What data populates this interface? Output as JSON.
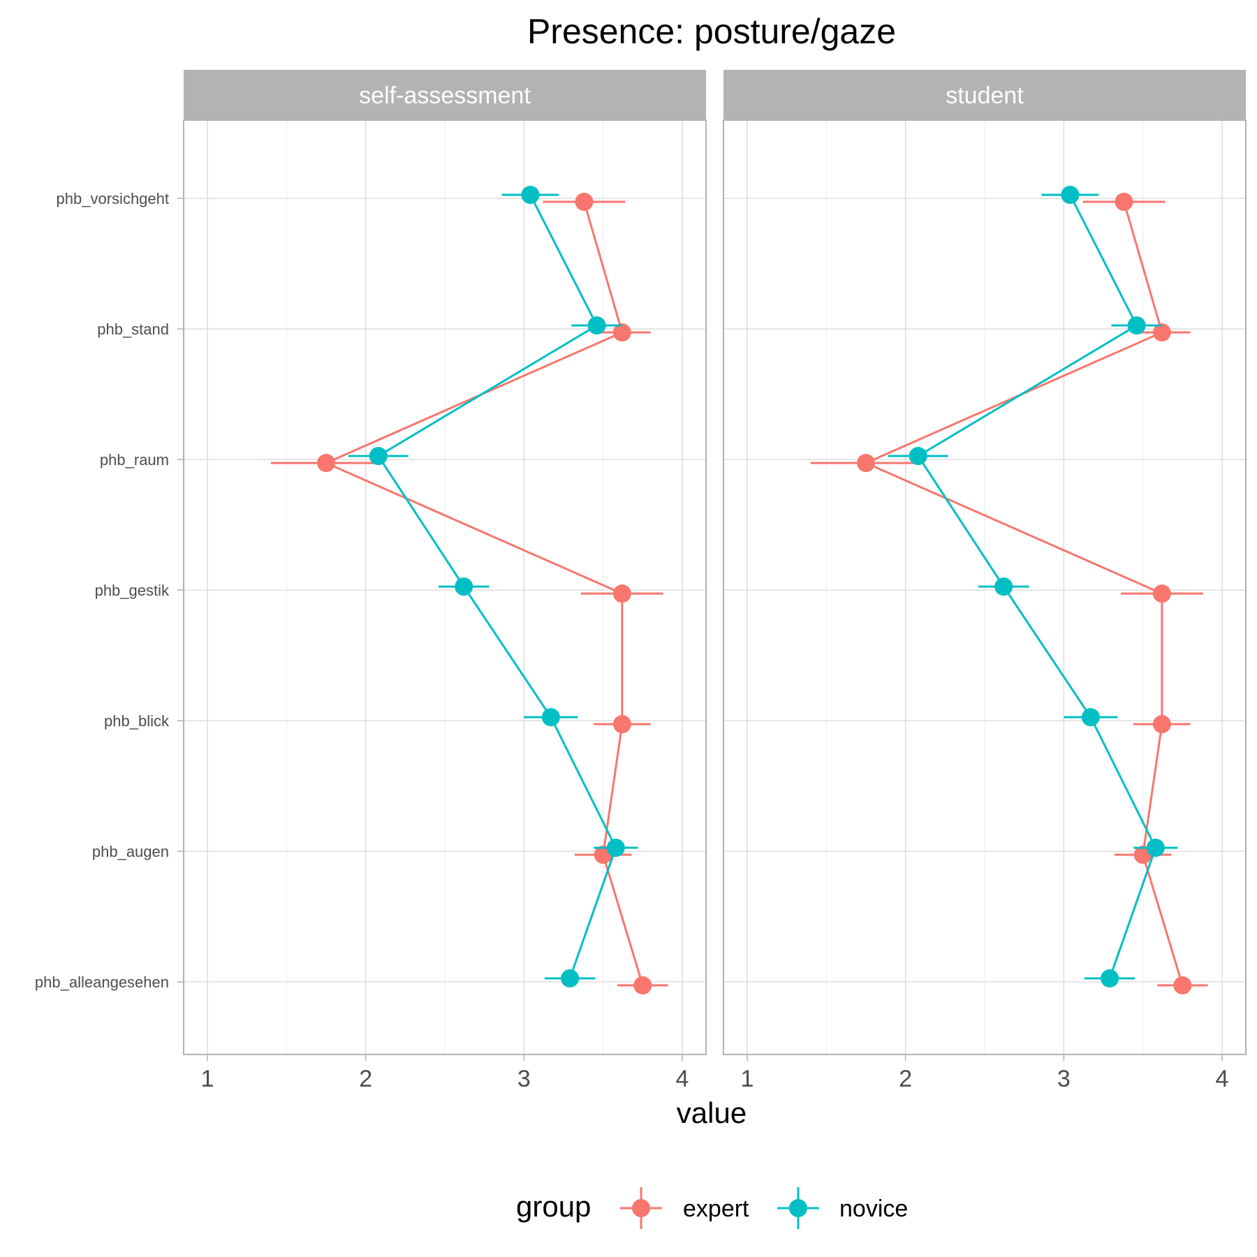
{
  "chart_data": {
    "type": "line",
    "title": "Presence: posture/gaze",
    "xlabel": "value",
    "xlim": [
      0.85,
      4.15
    ],
    "xticks": [
      1,
      2,
      3,
      4
    ],
    "categories": [
      "phb_vorsichgeht",
      "phb_stand",
      "phb_raum",
      "phb_gestik",
      "phb_blick",
      "phb_augen",
      "phb_alleangesehen"
    ],
    "facets": [
      {
        "label": "self-assessment",
        "series": [
          {
            "name": "expert",
            "color": "#F8766D",
            "values": [
              3.38,
              3.62,
              1.75,
              3.62,
              3.62,
              3.5,
              3.75
            ],
            "errors": [
              0.26,
              0.18,
              0.35,
              0.26,
              0.18,
              0.18,
              0.16
            ]
          },
          {
            "name": "novice",
            "color": "#00BFC4",
            "values": [
              3.04,
              3.46,
              2.08,
              2.62,
              3.17,
              3.58,
              3.29
            ],
            "errors": [
              0.18,
              0.16,
              0.19,
              0.16,
              0.17,
              0.14,
              0.16
            ]
          }
        ]
      },
      {
        "label": "student",
        "series": [
          {
            "name": "expert",
            "color": "#F8766D",
            "values": [
              3.38,
              3.62,
              1.75,
              3.62,
              3.62,
              3.5,
              3.75
            ],
            "errors": [
              0.26,
              0.18,
              0.35,
              0.26,
              0.18,
              0.18,
              0.16
            ]
          },
          {
            "name": "novice",
            "color": "#00BFC4",
            "values": [
              3.04,
              3.46,
              2.08,
              2.62,
              3.17,
              3.58,
              3.29
            ],
            "errors": [
              0.18,
              0.16,
              0.19,
              0.16,
              0.17,
              0.14,
              0.16
            ]
          }
        ]
      }
    ],
    "legend": {
      "title": "group",
      "position": "bottom",
      "entries": [
        {
          "name": "expert",
          "color": "#F8766D"
        },
        {
          "name": "novice",
          "color": "#00BFC4"
        }
      ]
    },
    "grid": true
  }
}
